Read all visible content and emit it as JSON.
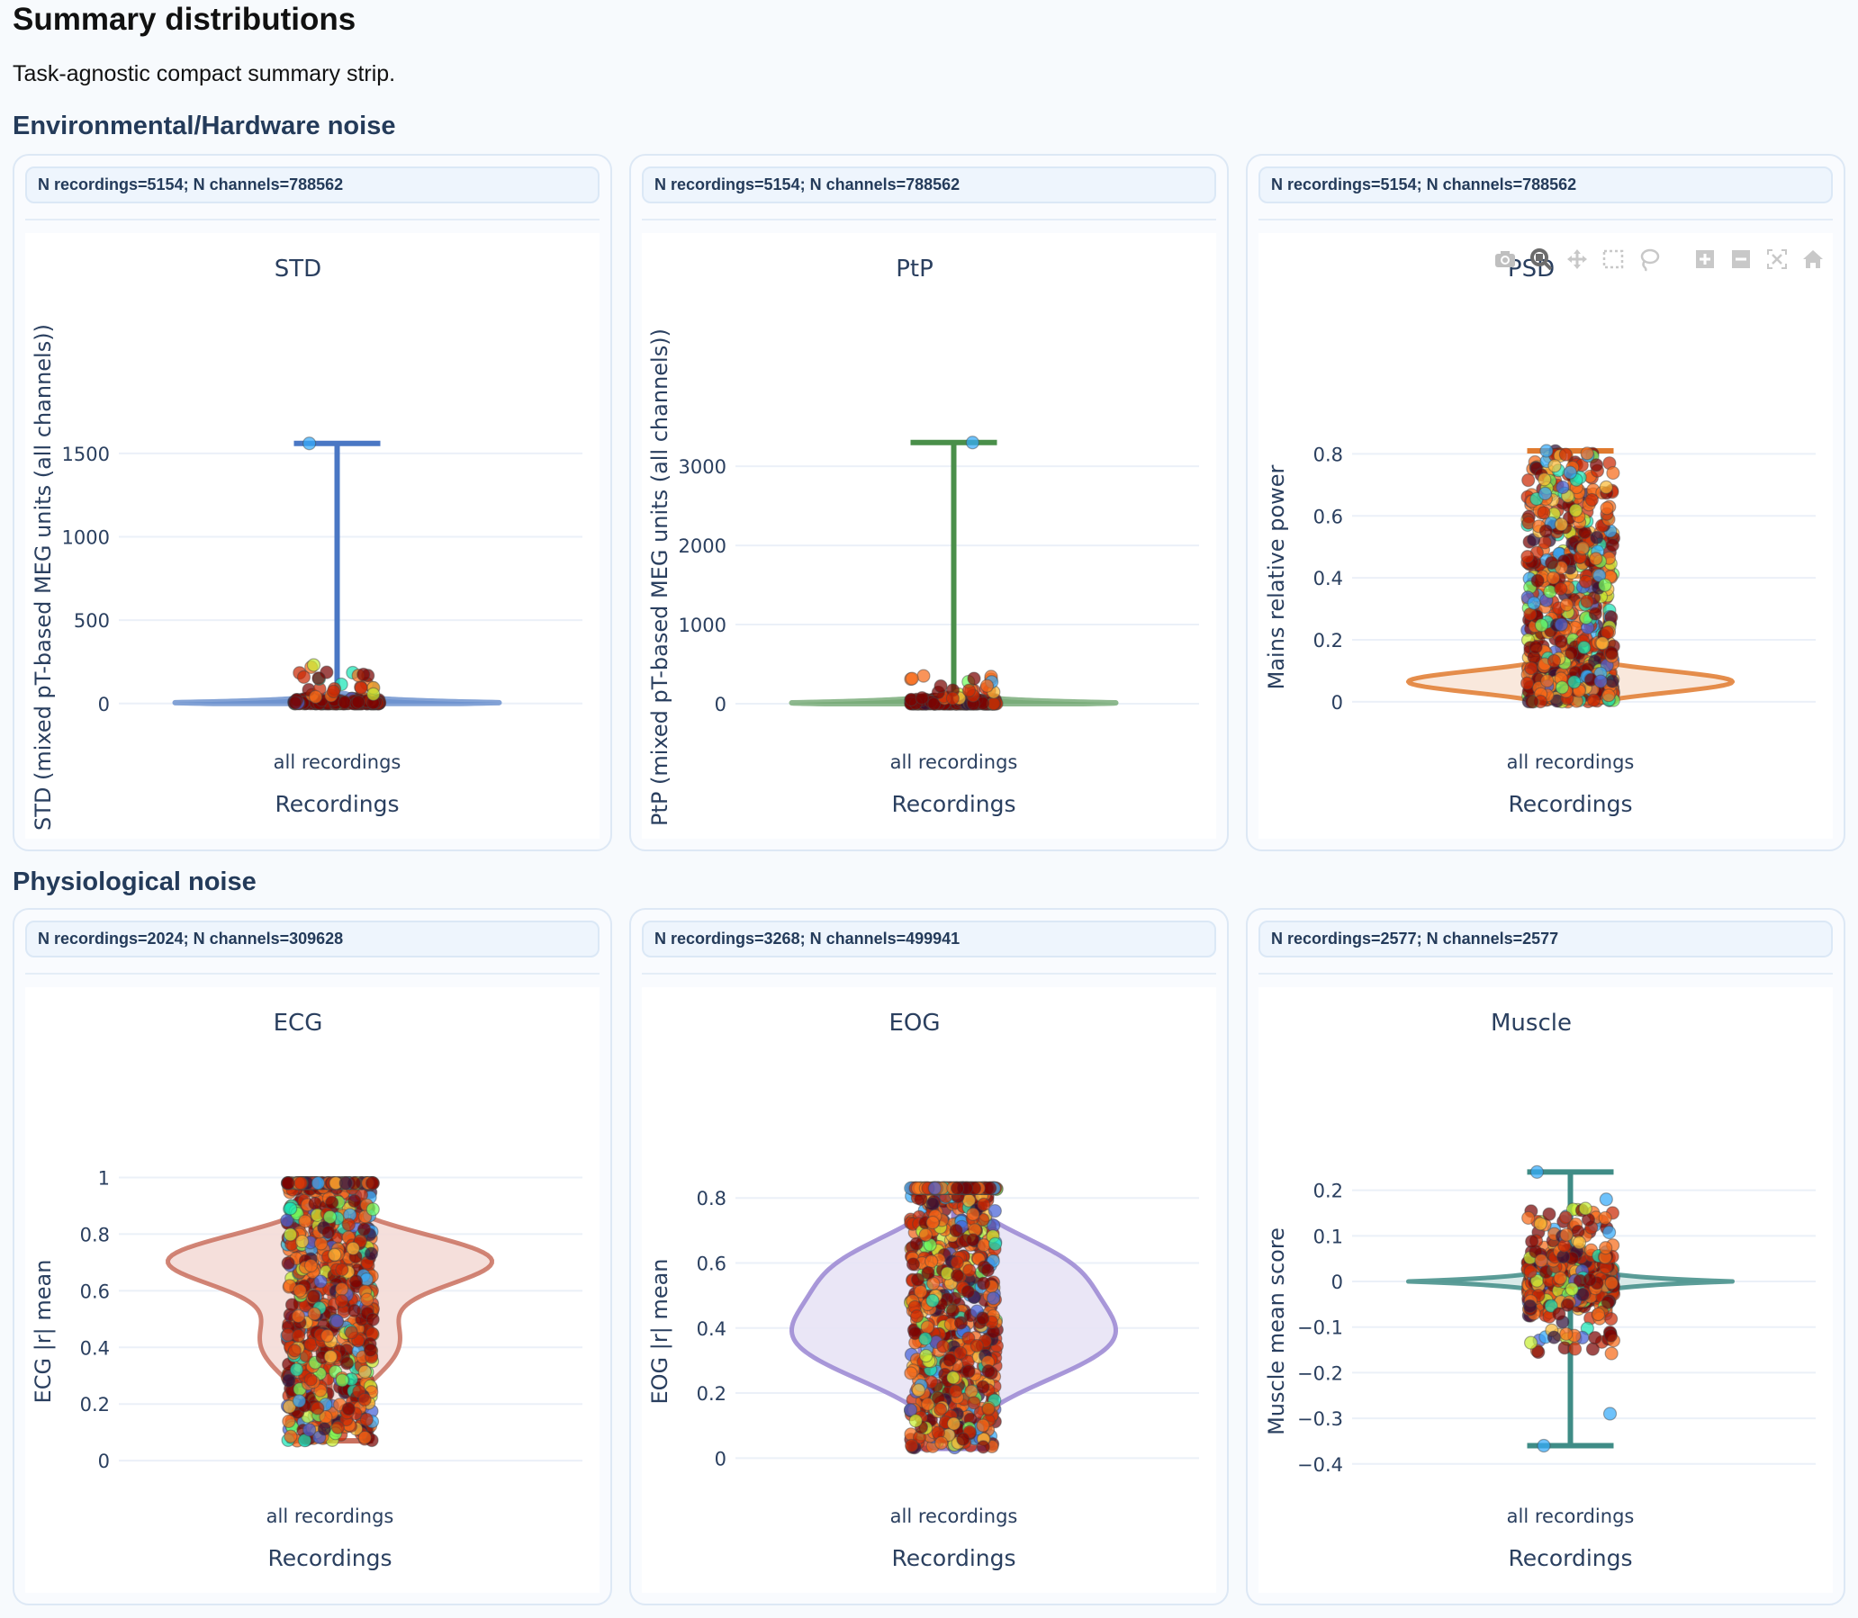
{
  "page": {
    "title": "Summary distributions",
    "subtitle": "Task-agnostic compact summary strip."
  },
  "sections": [
    {
      "title": "Environmental/Hardware noise"
    },
    {
      "title": "Physiological noise"
    }
  ],
  "modebar": {
    "buttons": [
      {
        "icon": "camera-icon",
        "label": "Download plot as a png"
      },
      {
        "icon": "zoom-icon",
        "label": "Zoom",
        "active": true
      },
      {
        "icon": "pan-icon",
        "label": "Pan"
      },
      {
        "icon": "box-select-icon",
        "label": "Box Select"
      },
      {
        "icon": "lasso-select-icon",
        "label": "Lasso Select"
      },
      {
        "icon": "zoom-in-icon",
        "label": "Zoom in"
      },
      {
        "icon": "zoom-out-icon",
        "label": "Zoom out"
      },
      {
        "icon": "autoscale-icon",
        "label": "Autoscale"
      },
      {
        "icon": "reset-axes-icon",
        "label": "Reset axes"
      }
    ]
  },
  "cards": [
    {
      "info": "N recordings=5154; N channels=788562"
    },
    {
      "info": "N recordings=5154; N channels=788562"
    },
    {
      "info": "N recordings=5154; N channels=788562"
    },
    {
      "info": "N recordings=2024; N channels=309628"
    },
    {
      "info": "N recordings=3268; N channels=499941"
    },
    {
      "info": "N recordings=2577; N channels=2577"
    }
  ],
  "chart_data": [
    {
      "type": "violin",
      "title": "STD",
      "xlabel": "Recordings",
      "ylabel": "STD (mixed pT-based MEG units (all channels))",
      "categories": [
        "all recordings"
      ],
      "ylim": [
        -120,
        1850
      ],
      "yticks": [
        0,
        500,
        1000,
        1500
      ],
      "ytick_labels": [
        "0",
        "500",
        "1000",
        "1500"
      ],
      "grid": true,
      "color": "#4a77c4",
      "fill": "#6f93cf",
      "box": {
        "whisker_low": 0,
        "q1": 2,
        "median": 5,
        "q3": 12,
        "whisker_high": 1560
      },
      "violin": {
        "mode": "spike",
        "peak": 5,
        "spread": 18
      },
      "points": {
        "dense_low": 0,
        "dense_high": 30,
        "sparse_high": 240,
        "outliers": [
          1560
        ]
      }
    },
    {
      "type": "violin",
      "title": "PtP",
      "xlabel": "Recordings",
      "ylabel": "PtP (mixed pT-based MEG units (all channels))",
      "categories": [
        "all recordings"
      ],
      "ylim": [
        -250,
        3900
      ],
      "yticks": [
        0,
        1000,
        2000,
        3000
      ],
      "ytick_labels": [
        "0",
        "1000",
        "2000",
        "3000"
      ],
      "grid": true,
      "color": "#4a8f4a",
      "fill": "#7aad7a",
      "box": {
        "whisker_low": 0,
        "q1": 5,
        "median": 12,
        "q3": 30,
        "whisker_high": 3300
      },
      "violin": {
        "mode": "spike",
        "peak": 10,
        "spread": 40
      },
      "points": {
        "dense_low": 0,
        "dense_high": 60,
        "sparse_high": 360,
        "outliers": [
          3300
        ]
      }
    },
    {
      "type": "violin",
      "title": "PSD",
      "xlabel": "Recordings",
      "ylabel": "Mains relative power",
      "categories": [
        "all recordings"
      ],
      "ylim": [
        -0.07,
        0.99
      ],
      "yticks": [
        0,
        0.2,
        0.4,
        0.6,
        0.8
      ],
      "ytick_labels": [
        "0",
        "0.2",
        "0.4",
        "0.6",
        "0.8"
      ],
      "grid": true,
      "color": "#e07a2e",
      "fill": "#f8e6d8",
      "box": {
        "whisker_low": 0.0,
        "q1": 0.05,
        "median": 0.12,
        "q3": 0.36,
        "whisker_high": 0.81
      },
      "violin": {
        "mode": "bimodal",
        "peaks": [
          [
            0.065,
            1.0,
            0.035
          ],
          [
            0.33,
            0.12,
            0.07
          ]
        ]
      },
      "points": {
        "dense_low": 0.0,
        "dense_high": 0.55,
        "sparse_high": 0.81,
        "outliers": [
          0.81,
          0.74
        ]
      }
    },
    {
      "type": "violin",
      "title": "ECG",
      "xlabel": "Recordings",
      "ylabel": "ECG |r| mean",
      "categories": [
        "all recordings"
      ],
      "ylim": [
        -0.06,
        1.1
      ],
      "yticks": [
        0,
        0.2,
        0.4,
        0.6,
        0.8,
        1
      ],
      "ytick_labels": [
        "0",
        "0.2",
        "0.4",
        "0.6",
        "0.8",
        "1"
      ],
      "grid": true,
      "color": "#c9705e",
      "fill": "#f4dcd7",
      "box": {
        "whisker_low": 0.07,
        "q1": 0.47,
        "median": 0.62,
        "q3": 0.75,
        "whisker_high": 0.98
      },
      "violin": {
        "mode": "bimodal",
        "peaks": [
          [
            0.71,
            1.0,
            0.09
          ],
          [
            0.42,
            0.45,
            0.14
          ]
        ],
        "range": [
          0.07,
          0.98
        ]
      },
      "points": {
        "dense_low": 0.07,
        "dense_high": 0.98,
        "sparse_high": 0.98,
        "outliers": []
      }
    },
    {
      "type": "violin",
      "title": "EOG",
      "xlabel": "Recordings",
      "ylabel": "EOG |r| mean",
      "categories": [
        "all recordings"
      ],
      "ylim": [
        -0.06,
        0.95
      ],
      "yticks": [
        0,
        0.2,
        0.4,
        0.6,
        0.8
      ],
      "ytick_labels": [
        "0",
        "0.2",
        "0.4",
        "0.6",
        "0.8"
      ],
      "grid": true,
      "color": "#9a86d2",
      "fill": "#e8e3f5",
      "box": {
        "whisker_low": 0.03,
        "q1": 0.26,
        "median": 0.38,
        "q3": 0.53,
        "whisker_high": 0.83
      },
      "violin": {
        "mode": "bimodal",
        "peaks": [
          [
            0.37,
            1.0,
            0.13
          ],
          [
            0.6,
            0.55,
            0.1
          ]
        ],
        "range": [
          0.03,
          0.83
        ]
      },
      "points": {
        "dense_low": 0.03,
        "dense_high": 0.83,
        "sparse_high": 0.83,
        "outliers": []
      }
    },
    {
      "type": "violin",
      "title": "Muscle",
      "xlabel": "Recordings",
      "ylabel": "Muscle mean score",
      "categories": [
        "all recordings"
      ],
      "ylim": [
        -0.43,
        0.29
      ],
      "yticks": [
        -0.4,
        -0.3,
        -0.2,
        -0.1,
        0,
        0.1,
        0.2
      ],
      "ytick_labels": [
        "−0.4",
        "−0.3",
        "−0.2",
        "−0.1",
        "0",
        "0.1",
        "0.2"
      ],
      "grid": true,
      "color": "#3f8c86",
      "fill": "#d6e9e7",
      "box": {
        "whisker_low": -0.36,
        "q1": -0.02,
        "median": 0.0,
        "q3": 0.02,
        "whisker_high": 0.24
      },
      "violin": {
        "mode": "spike",
        "peak": 0.0,
        "spread": 0.012
      },
      "points": {
        "dense_low": -0.05,
        "dense_high": 0.05,
        "sparse_low": -0.22,
        "sparse_high": 0.15,
        "outliers": [
          0.24,
          0.18,
          -0.29,
          -0.36
        ]
      }
    }
  ]
}
